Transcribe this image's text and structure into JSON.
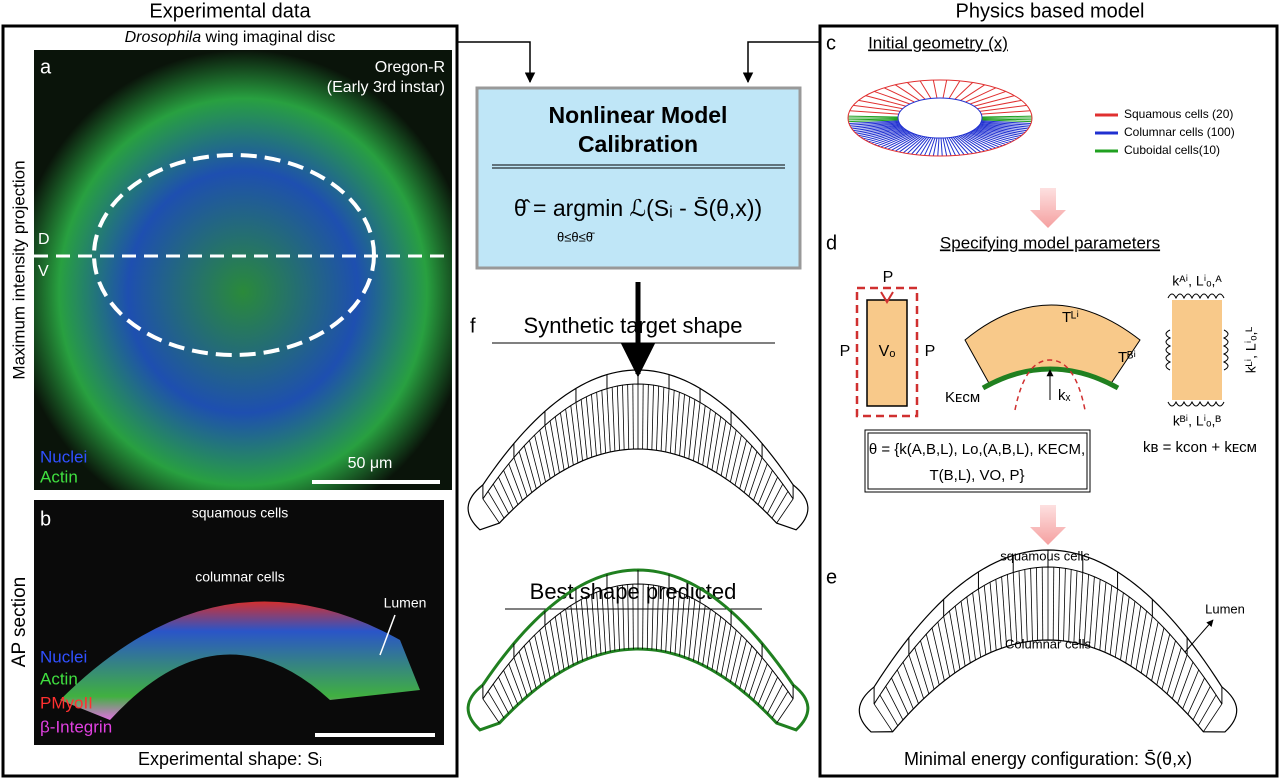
{
  "left": {
    "title": "Experimental data",
    "subtitle_italic": "Drosophila",
    "subtitle": "wing imaginal disc",
    "a": {
      "letter": "a",
      "strain": "Oregon-R",
      "stage": "(Early 3rd instar)",
      "side_label": "Maximum intensity projection",
      "d": "D",
      "v": "V",
      "legend": [
        "Nuclei",
        "Actin"
      ],
      "scale": "50 μm"
    },
    "b": {
      "letter": "b",
      "squamous": "squamous cells",
      "columnar": "columnar cells",
      "lumen": "Lumen",
      "side_label": "AP section",
      "legend": [
        "Nuclei",
        "Actin",
        "PMyoII",
        "β-Integrin"
      ]
    },
    "caption": "Experimental shape: Sᵢ"
  },
  "middle": {
    "box_title": [
      "Nonlinear Model",
      "Calibration"
    ],
    "formula": "θ̂ = argmin ℒ(Sᵢ - S̄(θ,x))",
    "constraint": "θ≤θ≤θ̄",
    "f": "f",
    "synthetic": "Synthetic target shape",
    "best": "Best shape predicted"
  },
  "right": {
    "title": "Physics based model",
    "c": {
      "letter": "c",
      "heading": "Initial geometry (x)",
      "legend": [
        "Squamous cells (20)",
        "Columnar cells (100)",
        "Cuboidal cells(10)"
      ]
    },
    "d": {
      "letter": "d",
      "heading": "Specifying model parameters",
      "p": "P",
      "vo": "Vₒ",
      "kecm": "Kᴇᴄᴍ",
      "tl": "Tᴸⁱ",
      "tb": "Tᴮⁱ",
      "kx": "kₓ",
      "ka": "kᴬⁱ, Lⁱₒ,ᴬ",
      "kl": "kᴸⁱ, Lⁱₒ,ᴸ",
      "kb": "kᴮⁱ, Lⁱₒ,ᴮ",
      "kb_eq": "kʙ = kcon + kᴇᴄᴍ",
      "theta": [
        "θ = {k(A,B,L), Lo,(A,B,L), KECM,",
        "T(B,L), VO, P}"
      ]
    },
    "e": {
      "letter": "e",
      "squamous": "squamous cells",
      "columnar": "Columnar cells",
      "lumen": "Lumen",
      "caption": "Minimal energy configuration: S̄(θ,x)"
    }
  }
}
